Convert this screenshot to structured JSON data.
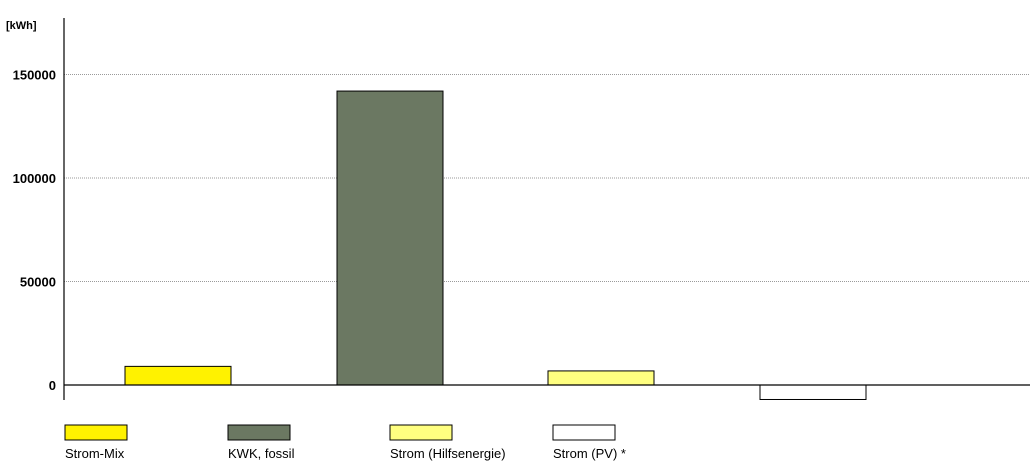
{
  "chart_data": {
    "type": "bar",
    "ylabel": "[kWh]",
    "yticks": [
      0,
      50000,
      100000,
      150000
    ],
    "ylim": [
      -8000,
      175000
    ],
    "grid": true,
    "legend_position": "bottom",
    "categories": [
      "Strom-Mix",
      "KWK, fossil",
      "Strom (Hilfsenergie)",
      "Strom (PV) *"
    ],
    "values": [
      9000,
      142000,
      6800,
      -7000
    ],
    "colors": [
      "#fff200",
      "#6b7862",
      "#ffff80",
      "#ffffff"
    ]
  }
}
